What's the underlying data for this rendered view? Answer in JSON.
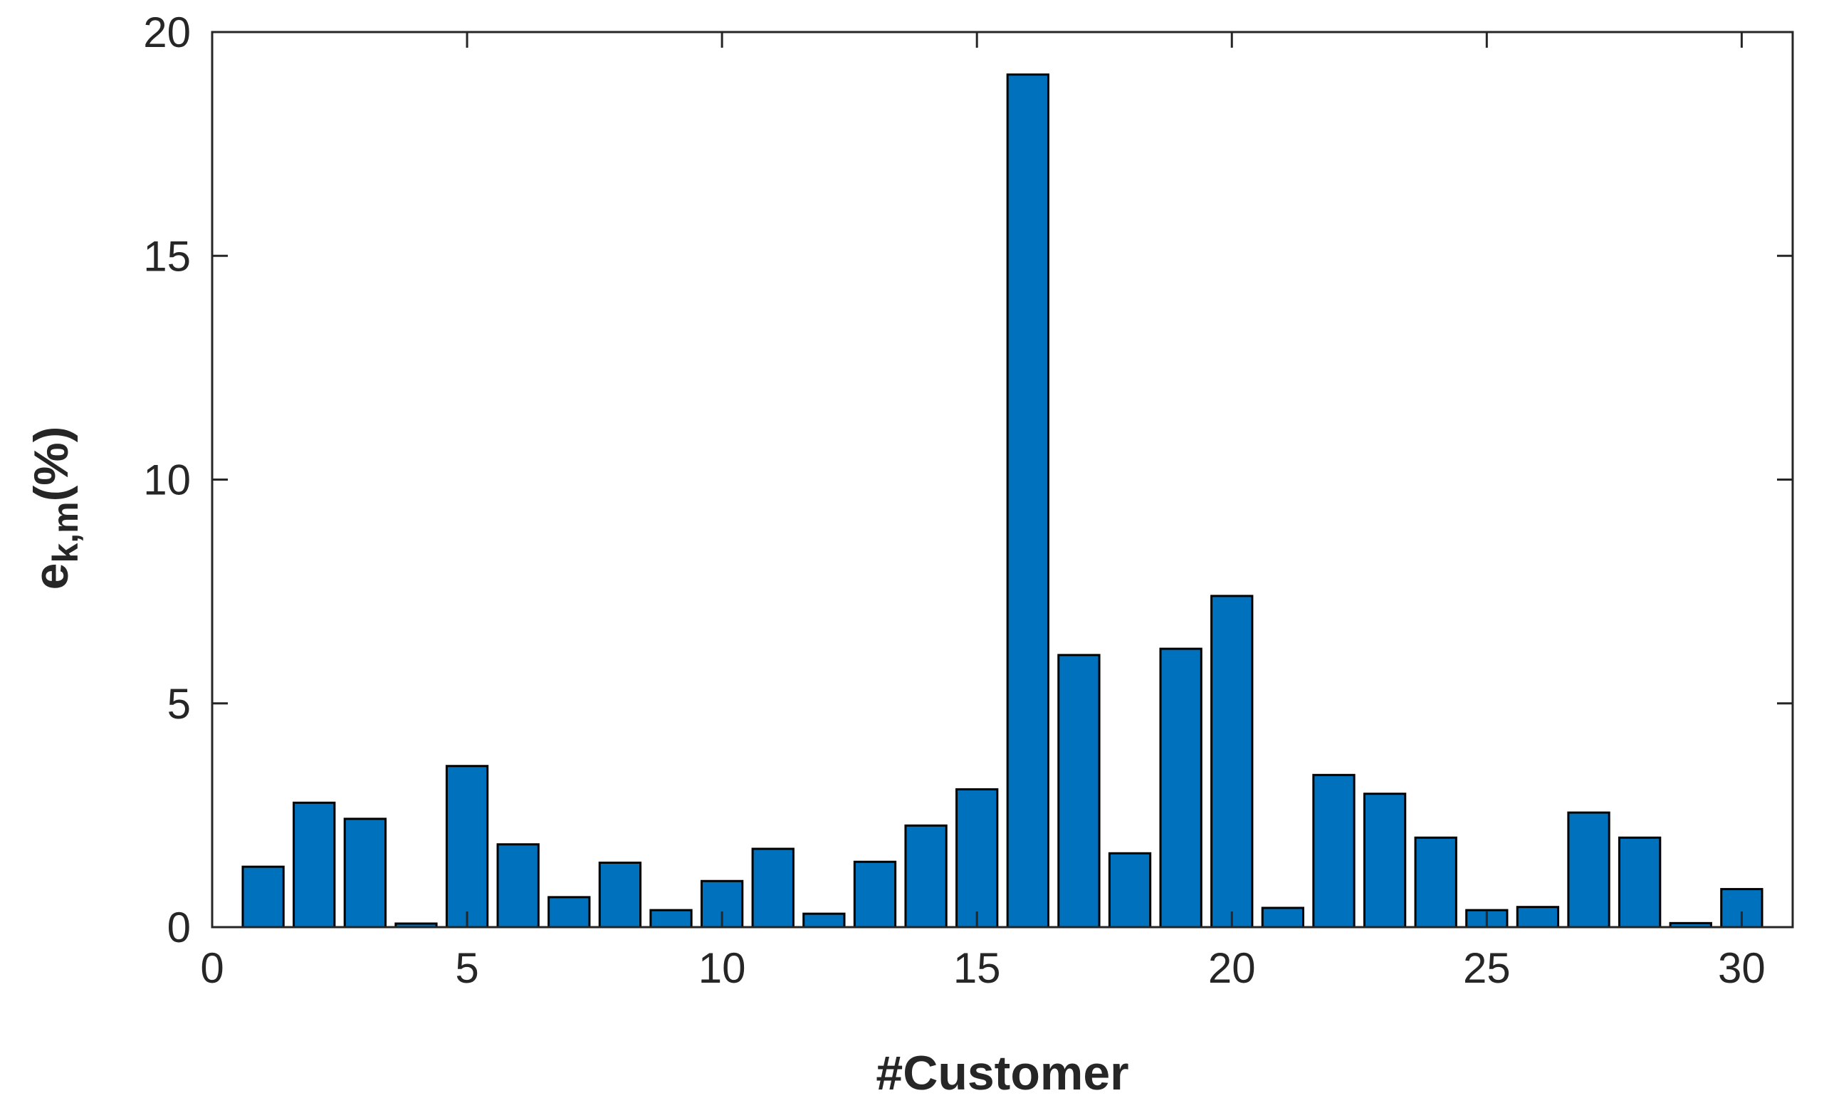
{
  "chart_data": {
    "type": "bar",
    "title": "",
    "xlabel": "#Customer",
    "ylabel": {
      "main": "e",
      "subscript": "k,m",
      "suffix": "(%)"
    },
    "x": [
      1,
      2,
      3,
      4,
      5,
      6,
      7,
      8,
      9,
      10,
      11,
      12,
      13,
      14,
      15,
      16,
      17,
      18,
      19,
      20,
      21,
      22,
      23,
      24,
      25,
      26,
      27,
      28,
      29,
      30
    ],
    "values": [
      1.35,
      2.78,
      2.42,
      0.08,
      3.6,
      1.85,
      0.67,
      1.44,
      0.38,
      1.03,
      1.75,
      0.3,
      1.46,
      2.27,
      3.08,
      19.05,
      6.08,
      1.65,
      6.22,
      7.4,
      0.43,
      3.4,
      2.98,
      2.0,
      0.38,
      0.45,
      2.56,
      2.0,
      0.09,
      0.85
    ],
    "xlim": [
      0,
      31
    ],
    "ylim": [
      0,
      20
    ],
    "xticks": [
      "0",
      "5",
      "10",
      "15",
      "20",
      "25",
      "30"
    ],
    "yticks": [
      "0",
      "5",
      "10",
      "15",
      "20"
    ],
    "bar_color": "#0072BD",
    "edge_color": "#000000",
    "grid": false,
    "box": true
  }
}
